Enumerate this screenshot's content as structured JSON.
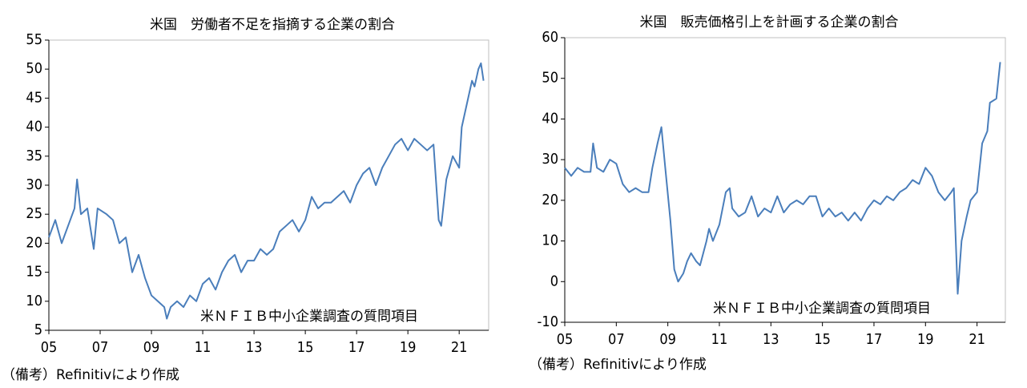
{
  "chart_data": [
    {
      "type": "line",
      "title": "米国　労働者不足を指摘する企業の割合",
      "note": "米ＮＦＩＢ中小企業調査の質問項目",
      "source": "（備考）Refinitivにより作成",
      "xlim": [
        2005,
        2022.15
      ],
      "ylim": [
        5,
        55
      ],
      "xticks": [
        {
          "value": 2005,
          "label": "05"
        },
        {
          "value": 2007,
          "label": "07"
        },
        {
          "value": 2009,
          "label": "09"
        },
        {
          "value": 2011,
          "label": "11"
        },
        {
          "value": 2013,
          "label": "13"
        },
        {
          "value": 2015,
          "label": "15"
        },
        {
          "value": 2017,
          "label": "17"
        },
        {
          "value": 2019,
          "label": "19"
        },
        {
          "value": 2021,
          "label": "21"
        }
      ],
      "yticks": [
        5,
        10,
        15,
        20,
        25,
        30,
        35,
        40,
        45,
        50,
        55
      ],
      "x": [
        2005.0,
        2005.25,
        2005.5,
        2005.75,
        2006.0,
        2006.1,
        2006.25,
        2006.5,
        2006.75,
        2006.9,
        2007.25,
        2007.5,
        2007.75,
        2008.0,
        2008.25,
        2008.5,
        2008.75,
        2009.0,
        2009.25,
        2009.5,
        2009.6,
        2009.75,
        2010.0,
        2010.25,
        2010.5,
        2010.75,
        2011.0,
        2011.25,
        2011.5,
        2011.75,
        2012.0,
        2012.25,
        2012.5,
        2012.75,
        2013.0,
        2013.25,
        2013.5,
        2013.75,
        2014.0,
        2014.25,
        2014.5,
        2014.75,
        2015.0,
        2015.25,
        2015.5,
        2015.75,
        2016.0,
        2016.25,
        2016.5,
        2016.75,
        2017.0,
        2017.25,
        2017.5,
        2017.75,
        2018.0,
        2018.25,
        2018.5,
        2018.75,
        2019.0,
        2019.25,
        2019.5,
        2019.75,
        2020.0,
        2020.2,
        2020.3,
        2020.5,
        2020.75,
        2021.0,
        2021.1,
        2021.3,
        2021.5,
        2021.6,
        2021.75,
        2021.85,
        2021.95
      ],
      "series": [
        {
          "color": "#4a7ebb",
          "values": [
            21,
            24,
            20,
            23,
            26,
            31,
            25,
            26,
            19,
            26,
            25,
            24,
            20,
            21,
            15,
            18,
            14,
            11,
            10,
            9,
            7,
            9,
            10,
            9,
            11,
            10,
            13,
            14,
            12,
            15,
            17,
            18,
            15,
            17,
            17,
            19,
            18,
            19,
            22,
            23,
            24,
            22,
            24,
            28,
            26,
            27,
            27,
            28,
            29,
            27,
            30,
            32,
            33,
            30,
            33,
            35,
            37,
            38,
            36,
            38,
            37,
            36,
            37,
            24,
            23,
            31,
            35,
            33,
            40,
            44,
            48,
            47,
            50,
            51,
            48
          ]
        }
      ]
    },
    {
      "type": "line",
      "title": "米国　販売価格引上を計画する企業の割合",
      "note": "米ＮＦＩＢ中小企業調査の質問項目",
      "source": "（備考）Refinitivにより作成",
      "xlim": [
        2005,
        2022.1
      ],
      "ylim": [
        -10,
        60
      ],
      "xticks": [
        {
          "value": 2005,
          "label": "05"
        },
        {
          "value": 2007,
          "label": "07"
        },
        {
          "value": 2009,
          "label": "09"
        },
        {
          "value": 2011,
          "label": "11"
        },
        {
          "value": 2013,
          "label": "13"
        },
        {
          "value": 2015,
          "label": "15"
        },
        {
          "value": 2017,
          "label": "17"
        },
        {
          "value": 2019,
          "label": "19"
        },
        {
          "value": 2021,
          "label": "21"
        }
      ],
      "yticks": [
        -10,
        0,
        10,
        20,
        30,
        40,
        50,
        60
      ],
      "x": [
        2005.0,
        2005.25,
        2005.5,
        2005.75,
        2006.0,
        2006.1,
        2006.25,
        2006.5,
        2006.75,
        2007.0,
        2007.25,
        2007.5,
        2007.75,
        2008.0,
        2008.25,
        2008.4,
        2008.6,
        2008.75,
        2008.9,
        2009.1,
        2009.25,
        2009.4,
        2009.6,
        2009.75,
        2009.9,
        2010.1,
        2010.25,
        2010.5,
        2010.6,
        2010.75,
        2011.0,
        2011.25,
        2011.4,
        2011.5,
        2011.75,
        2012.0,
        2012.25,
        2012.5,
        2012.75,
        2013.0,
        2013.25,
        2013.5,
        2013.75,
        2014.0,
        2014.25,
        2014.5,
        2014.75,
        2015.0,
        2015.25,
        2015.5,
        2015.75,
        2016.0,
        2016.25,
        2016.5,
        2016.75,
        2017.0,
        2017.25,
        2017.5,
        2017.75,
        2018.0,
        2018.25,
        2018.5,
        2018.75,
        2019.0,
        2019.25,
        2019.5,
        2019.75,
        2020.0,
        2020.1,
        2020.25,
        2020.4,
        2020.6,
        2020.75,
        2021.0,
        2021.2,
        2021.4,
        2021.5,
        2021.75,
        2021.9
      ],
      "series": [
        {
          "color": "#4a7ebb",
          "values": [
            28,
            26,
            28,
            27,
            27,
            34,
            28,
            27,
            30,
            29,
            24,
            22,
            23,
            22,
            22,
            28,
            34,
            38,
            28,
            15,
            3,
            0,
            2,
            5,
            7,
            5,
            4,
            10,
            13,
            10,
            14,
            22,
            23,
            18,
            16,
            17,
            21,
            16,
            18,
            17,
            21,
            17,
            19,
            20,
            19,
            21,
            21,
            16,
            18,
            16,
            17,
            15,
            17,
            15,
            18,
            20,
            19,
            21,
            20,
            22,
            23,
            25,
            24,
            28,
            26,
            22,
            20,
            22,
            23,
            -3,
            10,
            16,
            20,
            22,
            34,
            37,
            44,
            45,
            54
          ]
        }
      ]
    }
  ]
}
